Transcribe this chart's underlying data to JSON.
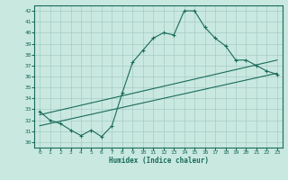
{
  "xlabel": "Humidex (Indice chaleur)",
  "background_color": "#c8e8e0",
  "grid_color": "#a8ccc4",
  "line_color": "#1a6b5a",
  "xlim": [
    -0.5,
    23.5
  ],
  "ylim": [
    29.5,
    42.5
  ],
  "xticks": [
    0,
    1,
    2,
    3,
    4,
    5,
    6,
    7,
    8,
    9,
    10,
    11,
    12,
    13,
    14,
    15,
    16,
    17,
    18,
    19,
    20,
    21,
    22,
    23
  ],
  "yticks": [
    30,
    31,
    32,
    33,
    34,
    35,
    36,
    37,
    38,
    39,
    40,
    41,
    42
  ],
  "series1_x": [
    0,
    1,
    2,
    3,
    4,
    5,
    6,
    7,
    8,
    9,
    10,
    11,
    12,
    13,
    14,
    15,
    16,
    17,
    18,
    19,
    20,
    21,
    22,
    23
  ],
  "series1_y": [
    32.8,
    32.0,
    31.7,
    31.1,
    30.6,
    31.1,
    30.5,
    31.5,
    34.5,
    37.3,
    38.4,
    39.5,
    40.0,
    39.8,
    42.0,
    42.0,
    40.5,
    39.5,
    38.8,
    37.5,
    37.5,
    37.0,
    36.5,
    36.2
  ],
  "series2_x": [
    0,
    23
  ],
  "series2_y": [
    32.5,
    37.5
  ],
  "series3_x": [
    0,
    23
  ],
  "series3_y": [
    31.5,
    36.3
  ]
}
